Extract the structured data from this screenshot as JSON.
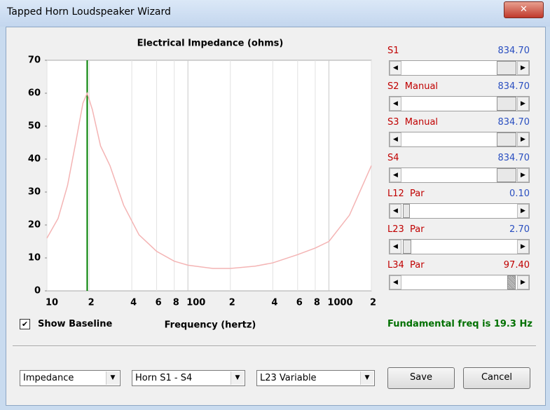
{
  "window": {
    "title": "Tapped Horn Loudspeaker Wizard"
  },
  "chart_data": {
    "type": "line",
    "title": "Electrical Impedance (ohms)",
    "x_label": "Frequency (hertz)",
    "x_scale": "log",
    "x": [
      10,
      12,
      14,
      16,
      18,
      19.3,
      21,
      24,
      28,
      35,
      45,
      60,
      80,
      100,
      150,
      200,
      300,
      400,
      600,
      800,
      1000,
      1400,
      2000
    ],
    "series": [
      {
        "color": "#f4b4b4",
        "values": [
          16,
          22,
          32,
          45,
          57,
          60,
          55,
          44,
          38,
          26,
          17,
          12,
          9,
          7.8,
          6.8,
          6.8,
          7.5,
          8.5,
          11,
          13,
          15,
          23,
          38
        ]
      }
    ],
    "xlim": [
      10,
      2000
    ],
    "ylim": [
      0,
      70
    ],
    "xticks": [
      10,
      {
        "value": 20,
        "label": "2"
      },
      {
        "value": 40,
        "label": "4"
      },
      {
        "value": 60,
        "label": "6"
      },
      {
        "value": 80,
        "label": "8"
      },
      100,
      {
        "value": 200,
        "label": "2"
      },
      {
        "value": 400,
        "label": "4"
      },
      {
        "value": 600,
        "label": "6"
      },
      {
        "value": 800,
        "label": "8"
      },
      1000,
      {
        "value": 2000,
        "label": "2"
      }
    ],
    "yticks": [
      0,
      10,
      20,
      30,
      40,
      50,
      60,
      70
    ],
    "grid": true,
    "marker": {
      "x": 19.3,
      "color": "#008000"
    }
  },
  "status": "Fundamental freq is 19.3 Hz",
  "sliders": [
    {
      "label": "S1",
      "value": "834.70",
      "value_color": "#2a4fc0"
    },
    {
      "label": "S2  Manual",
      "value": "834.70",
      "value_color": "#2a4fc0"
    },
    {
      "label": "S3  Manual",
      "value": "834.70",
      "value_color": "#2a4fc0"
    },
    {
      "label": "S4",
      "value": "834.70",
      "value_color": "#2a4fc0"
    },
    {
      "label": "L12  Par",
      "value": "0.10",
      "value_color": "#2a4fc0"
    },
    {
      "label": "L23  Par",
      "value": "2.70",
      "value_color": "#2a4fc0"
    },
    {
      "label": "L34  Par",
      "value": "97.40",
      "value_color": "#c00000"
    }
  ],
  "show_baseline": {
    "label": "Show Baseline",
    "checked": true
  },
  "dropdowns": [
    "Impedance",
    "Horn S1 - S4",
    "L23 Variable"
  ],
  "buttons": [
    "Save",
    "Cancel"
  ]
}
